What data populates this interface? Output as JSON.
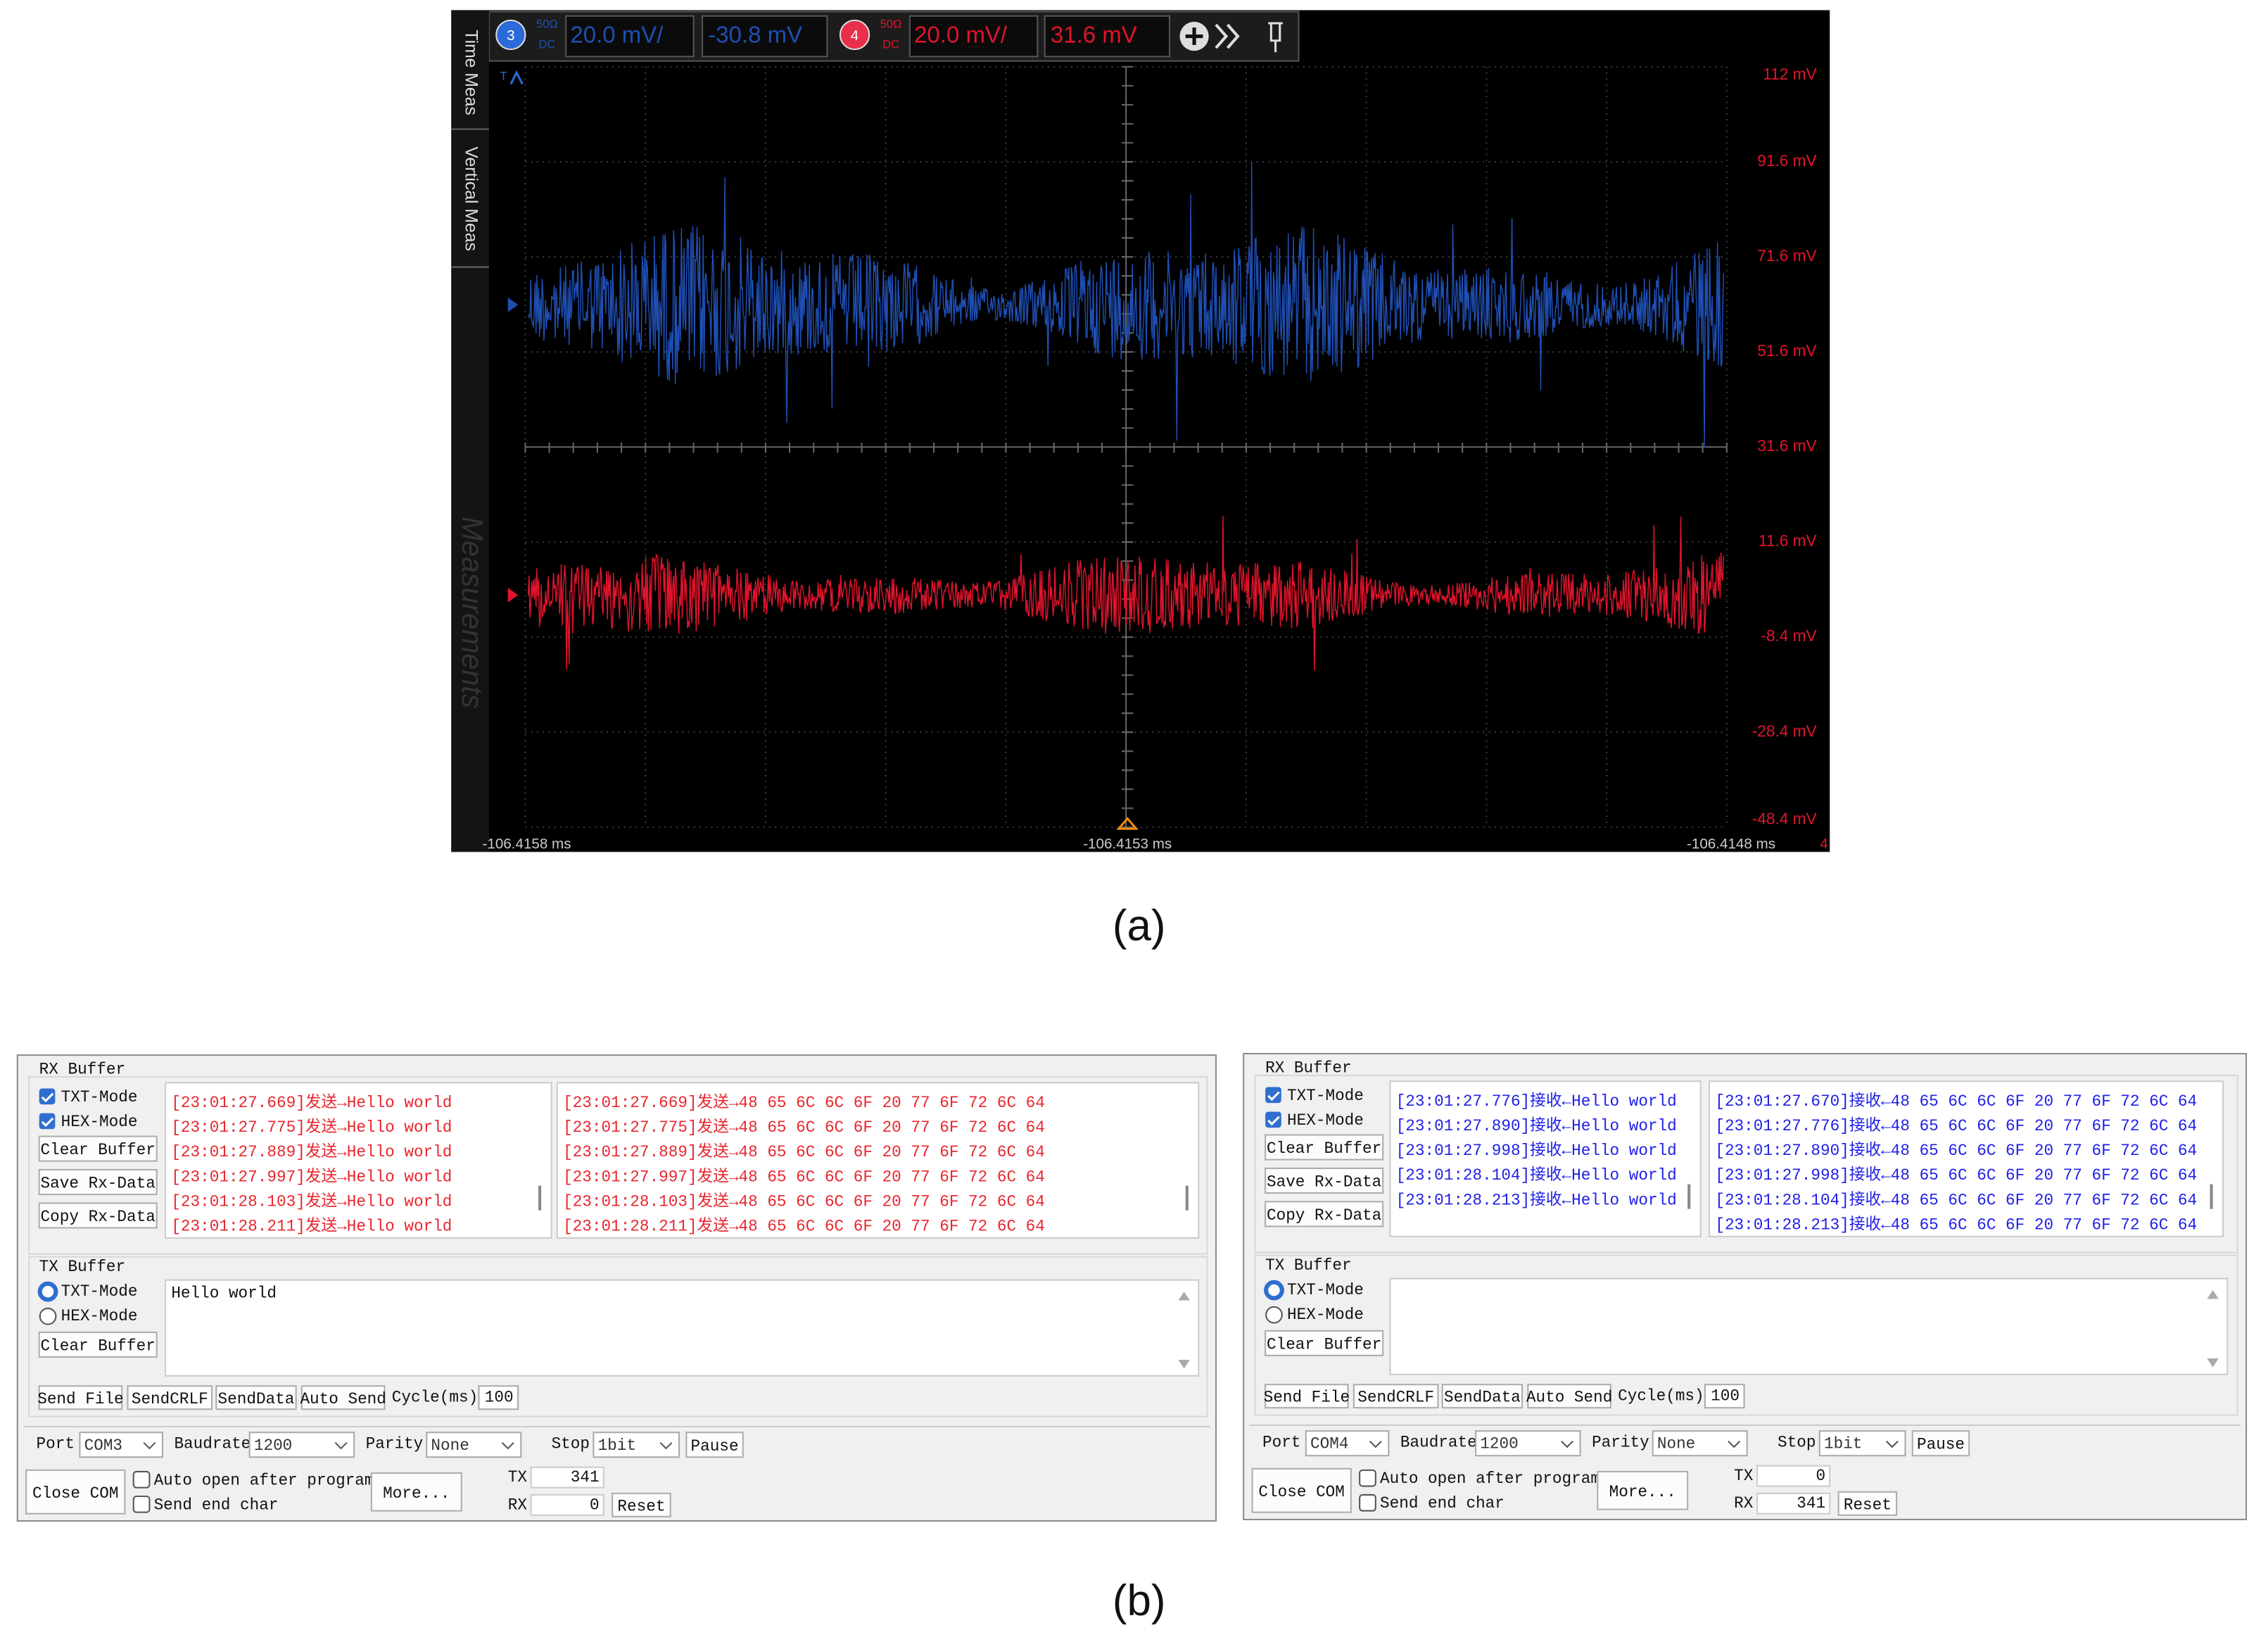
{
  "scope": {
    "side_tabs": [
      "Time Meas",
      "Vertical Meas"
    ],
    "watermark": "Measurements",
    "trigger_label": "T",
    "channels": [
      {
        "number": "3",
        "impedance": "50Ω",
        "coupling": "DC",
        "scale": "20.0 mV/",
        "offset": "-30.8 mV",
        "color": "#1f4fb4"
      },
      {
        "number": "4",
        "impedance": "50Ω",
        "coupling": "DC",
        "scale": "20.0 mV/",
        "offset": "31.6 mV",
        "color": "#e0142c"
      }
    ],
    "y_labels": [
      "112 mV",
      "91.6 mV",
      "71.6 mV",
      "51.6 mV",
      "31.6 mV",
      "11.6 mV",
      "-8.4 mV",
      "-28.4 mV",
      "-48.4 mV"
    ],
    "x_labels": [
      "-106.4158 ms",
      "-106.4153 ms",
      "-106.4148 ms"
    ],
    "corner_marker": "4"
  },
  "captions": [
    "(a)",
    "(b)"
  ],
  "serial_tools": [
    {
      "rx_title": "RX Buffer",
      "rx_modes": [
        "TXT-Mode",
        "HEX-Mode"
      ],
      "rx_buttons": [
        "Clear Buffer",
        "Save Rx-Data",
        "Copy Rx-Data"
      ],
      "rx_color": "#e8262e",
      "rx_text_lines": [
        "[23:01:27.669]发送→Hello world",
        "[23:01:27.775]发送→Hello world",
        "[23:01:27.889]发送→Hello world",
        "[23:01:27.997]发送→Hello world",
        "[23:01:28.103]发送→Hello world",
        "[23:01:28.211]发送→Hello world"
      ],
      "rx_hex_lines": [
        "[23:01:27.669]发送→48 65 6C 6C 6F 20 77 6F 72 6C 64",
        "[23:01:27.775]发送→48 65 6C 6C 6F 20 77 6F 72 6C 64",
        "[23:01:27.889]发送→48 65 6C 6C 6F 20 77 6F 72 6C 64",
        "[23:01:27.997]发送→48 65 6C 6C 6F 20 77 6F 72 6C 64",
        "[23:01:28.103]发送→48 65 6C 6C 6F 20 77 6F 72 6C 64",
        "[23:01:28.211]发送→48 65 6C 6C 6F 20 77 6F 72 6C 64"
      ],
      "tx_title": "TX Buffer",
      "tx_modes": [
        "TXT-Mode",
        "HEX-Mode"
      ],
      "tx_clear": "Clear Buffer",
      "tx_text": "Hello world",
      "send_buttons": [
        "Send File",
        "SendCRLF",
        "SendData",
        "Auto Send"
      ],
      "cycle_label": "Cycle(ms)",
      "cycle_value": 100,
      "port_label": "Port",
      "port_value": "COM3",
      "baud_label": "Baudrate",
      "baud_value": 1200,
      "parity_label": "Parity",
      "parity_value": "None",
      "stop_label": "Stop",
      "stop_value": "1bit",
      "pause": "Pause",
      "close": "Close COM",
      "auto_open": "Auto open after program",
      "send_end": "Send end char",
      "more": "More...",
      "tx_label": "TX",
      "tx_count": 341,
      "rx_label": "RX",
      "rx_count": 0,
      "reset": "Reset"
    },
    {
      "rx_title": "RX Buffer",
      "rx_modes": [
        "TXT-Mode",
        "HEX-Mode"
      ],
      "rx_buttons": [
        "Clear Buffer",
        "Save Rx-Data",
        "Copy Rx-Data"
      ],
      "rx_color": "#2020e8",
      "rx_text_lines": [
        "[23:01:27.776]接收←Hello world",
        "[23:01:27.890]接收←Hello world",
        "[23:01:27.998]接收←Hello world",
        "[23:01:28.104]接收←Hello world",
        "[23:01:28.213]接收←Hello world"
      ],
      "rx_hex_lines": [
        "[23:01:27.670]接收←48 65 6C 6C 6F 20 77 6F 72 6C 64",
        "[23:01:27.776]接收←48 65 6C 6C 6F 20 77 6F 72 6C 64",
        "[23:01:27.890]接收←48 65 6C 6C 6F 20 77 6F 72 6C 64",
        "[23:01:27.998]接收←48 65 6C 6C 6F 20 77 6F 72 6C 64",
        "[23:01:28.104]接收←48 65 6C 6C 6F 20 77 6F 72 6C 64",
        "[23:01:28.213]接收←48 65 6C 6C 6F 20 77 6F 72 6C 64"
      ],
      "tx_title": "TX Buffer",
      "tx_modes": [
        "TXT-Mode",
        "HEX-Mode"
      ],
      "tx_clear": "Clear Buffer",
      "send_buttons": [
        "Send File",
        "SendCRLF",
        "SendData",
        "Auto Send"
      ],
      "cycle_label": "Cycle(ms)",
      "cycle_value": 100,
      "port_label": "Port",
      "port_value": "COM4",
      "baud_label": "Baudrate",
      "baud_value": 1200,
      "parity_label": "Parity",
      "parity_value": "None",
      "stop_label": "Stop",
      "stop_value": "1bit",
      "pause": "Pause",
      "close": "Close COM",
      "auto_open": "Auto open after program",
      "send_end": "Send end char",
      "more": "More...",
      "tx_label": "TX",
      "tx_count": 0,
      "rx_label": "RX",
      "rx_count": 341,
      "reset": "Reset"
    }
  ]
}
